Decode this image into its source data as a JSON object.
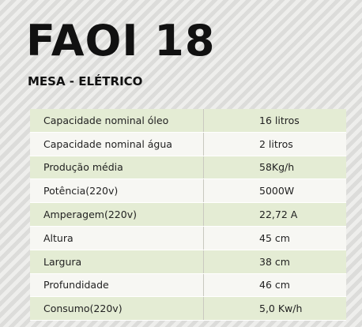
{
  "header": {
    "title": "FAOI 18",
    "subtitle": "MESA - ELÉTRICO"
  },
  "table": {
    "rows": [
      [
        "Capacidade nominal óleo",
        "16 litros"
      ],
      [
        "Capacidade nominal água",
        "2 litros"
      ],
      [
        "Produção média",
        "58Kg/h"
      ],
      [
        "Potência(220v)",
        "5000W"
      ],
      [
        "Amperagem(220v)",
        "22,72 A"
      ],
      [
        "Altura",
        "45 cm"
      ],
      [
        "Largura",
        "38 cm"
      ],
      [
        "Profundidade",
        "46 cm"
      ],
      [
        "Consumo(220v)",
        "5,0 Kw/h"
      ]
    ]
  }
}
